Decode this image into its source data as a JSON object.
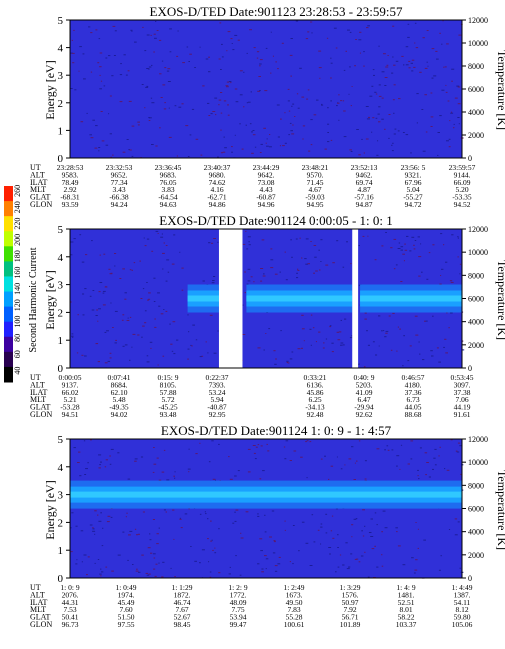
{
  "chart_data": [
    {
      "type": "heatmap",
      "title": "EXOS-D/TED   Date:901123  23:28:53 - 23:59:57",
      "ylabel": "Energy [eV]",
      "y2label": "Temperature [K]",
      "ylim": [
        0,
        5
      ],
      "y2lim": [
        0,
        12000
      ],
      "yticks": [
        "0",
        "1",
        "2",
        "3",
        "4",
        "5"
      ],
      "y2ticks": [
        "0",
        "2000",
        "4000",
        "6000",
        "8000",
        "10000",
        "12000"
      ],
      "gaps": [],
      "band": null,
      "table": {
        "rows": [
          {
            "name": "UT",
            "values": [
              "23:28:53",
              "23:32:53",
              "23:36:45",
              "23:40:37",
              "23:44:29",
              "23:48:21",
              "23:52:13",
              "23:56: 5",
              "23:59:57"
            ]
          },
          {
            "name": "ALT",
            "values": [
              "9583.",
              "9652.",
              "9683.",
              "9680.",
              "9642.",
              "9570.",
              "9462.",
              "9321.",
              "9144."
            ]
          },
          {
            "name": "ILAT",
            "values": [
              "78.49",
              "77.34",
              "76.05",
              "74.62",
              "73.08",
              "71.45",
              "69.74",
              "67.96",
              "66.09"
            ]
          },
          {
            "name": "MLT",
            "values": [
              "2.92",
              "3.43",
              "3.83",
              "4.16",
              "4.43",
              "4.67",
              "4.87",
              "5.04",
              "5.20"
            ]
          },
          {
            "name": "GLAT",
            "values": [
              "-68.31",
              "-66.38",
              "-64.54",
              "-62.71",
              "-60.87",
              "-59.03",
              "-57.16",
              "-55.27",
              "-53.35"
            ]
          },
          {
            "name": "GLON",
            "values": [
              "93.59",
              "94.24",
              "94.63",
              "94.86",
              "94.96",
              "94.95",
              "94.87",
              "94.72",
              "94.52"
            ]
          }
        ]
      }
    },
    {
      "type": "heatmap",
      "title": "EXOS-D/TED   Date:901124  0:00:05 - 1: 0: 1",
      "ylabel": "Energy [eV]",
      "y2label": "Temperature [K]",
      "ylim": [
        0,
        5
      ],
      "y2lim": [
        0,
        12000
      ],
      "yticks": [
        "0",
        "1",
        "2",
        "3",
        "4",
        "5"
      ],
      "y2ticks": [
        "0",
        "2000",
        "4000",
        "6000",
        "8000",
        "10000",
        "12000"
      ],
      "gaps": [
        [
          0.38,
          0.44
        ],
        [
          0.72,
          0.735
        ]
      ],
      "band": {
        "center_eV": 2.5,
        "segments": [
          [
            0.3,
            0.38
          ],
          [
            0.45,
            0.72
          ],
          [
            0.74,
            1.0
          ]
        ]
      },
      "colorbar": {
        "label": "Second Harmonic Current",
        "ticks": [
          "40",
          "60",
          "80",
          "100",
          "120",
          "140",
          "160",
          "180",
          "200",
          "220",
          "240",
          "260"
        ],
        "colors": [
          "#000000",
          "#280050",
          "#3c00a0",
          "#2020ff",
          "#0060ff",
          "#00a0ff",
          "#00e0e0",
          "#00c080",
          "#40e000",
          "#c0ff00",
          "#ffe000",
          "#ff8000",
          "#ff2000"
        ]
      },
      "table": {
        "rows": [
          {
            "name": "UT",
            "values": [
              "0:00:05",
              "0:07:41",
              "0:15: 9",
              "0:22:37",
              "",
              "0:33:21",
              "0:40: 9",
              "0:46:57",
              "0:53:45"
            ]
          },
          {
            "name": "ALT",
            "values": [
              "9137.",
              "8684.",
              "8105.",
              "7393.",
              "",
              "6136.",
              "5203.",
              "4180.",
              "3097."
            ]
          },
          {
            "name": "ILAT",
            "values": [
              "66.02",
              "62.10",
              "57.88",
              "53.24",
              "",
              "45.86",
              "41.09",
              "37.36",
              "37.38"
            ]
          },
          {
            "name": "MLT",
            "values": [
              "5.21",
              "5.48",
              "5.72",
              "5.94",
              "",
              "6.25",
              "6.47",
              "6.73",
              "7.06"
            ]
          },
          {
            "name": "GLAT",
            "values": [
              "-53.28",
              "-49.35",
              "-45.25",
              "-40.87",
              "",
              "-34.13",
              "-29.94",
              "44.05",
              "44.19"
            ]
          },
          {
            "name": "GLON",
            "values": [
              "94.51",
              "94.02",
              "93.48",
              "92.95",
              "",
              "92.48",
              "92.62",
              "88.68",
              "91.61"
            ]
          }
        ]
      }
    },
    {
      "type": "heatmap",
      "title": "EXOS-D/TED   Date:901124  1: 0: 9 - 1: 4:57",
      "ylabel": "Energy [eV]",
      "y2label": "Temperature [K]",
      "ylim": [
        0,
        5
      ],
      "y2lim": [
        0,
        12000
      ],
      "yticks": [
        "0",
        "1",
        "2",
        "3",
        "4",
        "5"
      ],
      "y2ticks": [
        "0",
        "2000",
        "4000",
        "6000",
        "8000",
        "10000",
        "12000"
      ],
      "gaps": [],
      "band": {
        "center_eV": 3.0,
        "segments": [
          [
            0.0,
            1.0
          ]
        ]
      },
      "table": {
        "rows": [
          {
            "name": "UT",
            "values": [
              "1: 0: 9",
              "1: 0:49",
              "1: 1:29",
              "1: 2: 9",
              "1: 2:49",
              "1: 3:29",
              "1: 4: 9",
              "1: 4:49"
            ]
          },
          {
            "name": "ALT",
            "values": [
              "2076.",
              "1974.",
              "1872.",
              "1772.",
              "1673.",
              "1576.",
              "1481.",
              "1387."
            ]
          },
          {
            "name": "ILAT",
            "values": [
              "44.31",
              "45.49",
              "46.74",
              "48.09",
              "49.50",
              "50.97",
              "52.51",
              "54.11"
            ]
          },
          {
            "name": "MLT",
            "values": [
              "7.53",
              "7.60",
              "7.67",
              "7.75",
              "7.83",
              "7.92",
              "8.01",
              "8.12"
            ]
          },
          {
            "name": "GLAT",
            "values": [
              "50.41",
              "51.50",
              "52.67",
              "53.94",
              "55.28",
              "56.71",
              "58.22",
              "59.80"
            ]
          },
          {
            "name": "GLON",
            "values": [
              "96.73",
              "97.55",
              "98.45",
              "99.47",
              "100.61",
              "101.89",
              "103.37",
              "105.06"
            ]
          }
        ]
      }
    }
  ]
}
